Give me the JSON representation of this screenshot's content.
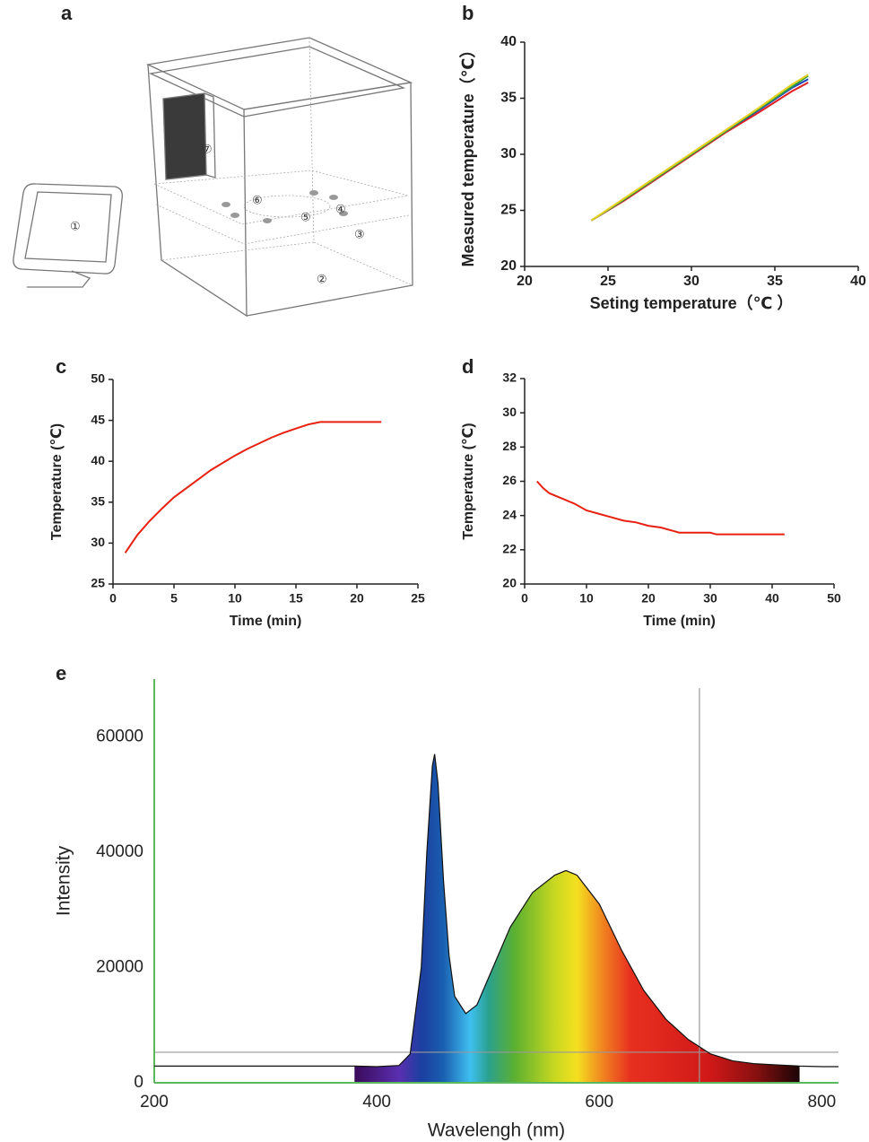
{
  "diagram": {
    "panel": "a",
    "labels": [
      "①",
      "②",
      "③",
      "④",
      "⑤",
      "⑥",
      "⑦"
    ]
  },
  "chart_data": [
    {
      "type": "line",
      "panel": "b",
      "x_label": "Seting temperature（℃ ）",
      "y_label": "Measured temperature（℃）",
      "x": [
        24,
        26,
        28,
        30,
        32,
        34,
        36,
        37
      ],
      "series": [
        {
          "color": "#e02020",
          "values": [
            24.1,
            25.9,
            27.9,
            29.9,
            31.9,
            33.7,
            35.6,
            36.4
          ]
        },
        {
          "color": "#2040c0",
          "values": [
            24.1,
            26.0,
            28.0,
            30.0,
            32.0,
            33.9,
            35.9,
            36.7
          ]
        },
        {
          "color": "#30a040",
          "values": [
            24.1,
            26.0,
            28.0,
            30.0,
            32.0,
            34.0,
            36.0,
            37.0
          ]
        },
        {
          "color": "#e8d020",
          "values": [
            24.1,
            26.1,
            28.1,
            30.1,
            32.1,
            34.1,
            36.2,
            37.1
          ]
        }
      ],
      "xlim": [
        20,
        40
      ],
      "xticks": [
        20,
        25,
        30,
        35,
        40
      ],
      "ylim": [
        20,
        40
      ],
      "yticks": [
        20,
        25,
        30,
        35,
        40
      ]
    },
    {
      "type": "line",
      "panel": "c",
      "x_label": "Time (min)",
      "y_label": "Temperature (℃)",
      "x": [
        1,
        2,
        3,
        4,
        5,
        6,
        7,
        8,
        9,
        10,
        11,
        12,
        13,
        14,
        15,
        16,
        17,
        22
      ],
      "series": [
        {
          "color": "#e82010",
          "values": [
            28.8,
            31,
            32.7,
            34.2,
            35.6,
            36.7,
            37.8,
            38.9,
            39.8,
            40.7,
            41.5,
            42.2,
            42.9,
            43.5,
            44.0,
            44.5,
            44.8,
            44.8
          ]
        }
      ],
      "xlim": [
        0,
        25
      ],
      "xticks": [
        0,
        5,
        10,
        15,
        20,
        25
      ],
      "ylim": [
        25,
        50
      ],
      "yticks": [
        25,
        30,
        35,
        40,
        45,
        50
      ]
    },
    {
      "type": "line",
      "panel": "d",
      "x_label": "Time (min)",
      "y_label": "Temperature (℃)",
      "x": [
        2,
        3,
        4,
        6,
        8,
        10,
        12,
        14,
        16,
        18,
        20,
        22,
        24,
        25,
        30,
        31,
        42
      ],
      "series": [
        {
          "color": "#e82010",
          "values": [
            26.0,
            25.6,
            25.3,
            25.0,
            24.7,
            24.3,
            24.1,
            23.9,
            23.7,
            23.6,
            23.4,
            23.3,
            23.1,
            23.0,
            23.0,
            22.9,
            22.9
          ]
        }
      ],
      "xlim": [
        0,
        50
      ],
      "xticks": [
        0,
        10,
        20,
        30,
        40,
        50
      ],
      "ylim": [
        20,
        32
      ],
      "yticks": [
        20,
        22,
        24,
        26,
        28,
        30,
        32
      ]
    },
    {
      "type": "area",
      "panel": "e",
      "x_label": "Wavelengh (nm)",
      "y_label": "Intensity",
      "x": [
        200,
        380,
        400,
        420,
        430,
        440,
        445,
        450,
        452,
        455,
        460,
        465,
        470,
        480,
        490,
        500,
        520,
        540,
        560,
        570,
        580,
        600,
        620,
        640,
        660,
        680,
        700,
        720,
        740,
        760,
        780,
        800,
        815
      ],
      "values": [
        2900,
        2900,
        2800,
        3000,
        5000,
        20000,
        40000,
        55000,
        57000,
        52000,
        35000,
        22000,
        15000,
        12000,
        13500,
        18000,
        27000,
        33000,
        36000,
        36800,
        36000,
        31000,
        23000,
        16000,
        11000,
        7500,
        5000,
        3800,
        3300,
        3100,
        2900,
        2800,
        2800
      ],
      "color": "#111111",
      "fill_range": [
        380,
        780
      ],
      "axis_color": "#5cb85c",
      "crosshair": {
        "x": 690,
        "y": 5300
      },
      "xlim": [
        200,
        815
      ],
      "xticks": [
        200,
        400,
        600,
        800
      ],
      "ylim": [
        0,
        70000
      ],
      "yticks": [
        0,
        20000,
        40000,
        60000
      ]
    }
  ]
}
